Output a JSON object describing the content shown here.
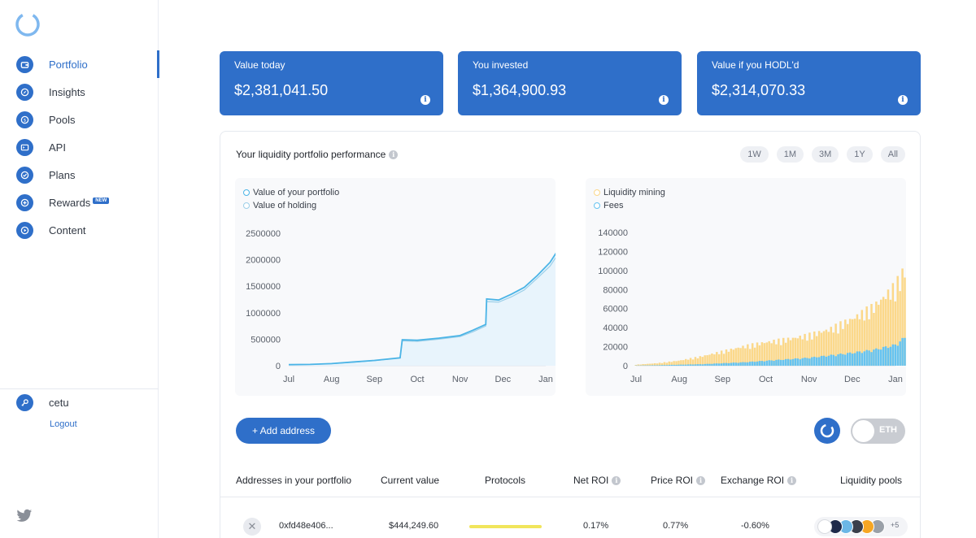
{
  "nav": {
    "items": [
      {
        "label": "Portfolio",
        "icon": "wallet-icon",
        "active": true
      },
      {
        "label": "Insights",
        "icon": "compass-icon"
      },
      {
        "label": "Pools",
        "icon": "coin-icon"
      },
      {
        "label": "API",
        "icon": "terminal-icon"
      },
      {
        "label": "Plans",
        "icon": "check-circle-icon"
      },
      {
        "label": "Rewards",
        "icon": "plus-circle-icon",
        "badge": "NEW"
      },
      {
        "label": "Content",
        "icon": "play-icon"
      }
    ]
  },
  "user": {
    "name": "cetu",
    "logout_label": "Logout",
    "icon": "key-icon"
  },
  "cards": [
    {
      "label": "Value today",
      "value": "$2,381,041.50"
    },
    {
      "label": "You invested",
      "value": "$1,364,900.93"
    },
    {
      "label": "Value if you HODL'd",
      "value": "$2,314,070.33"
    }
  ],
  "performance": {
    "title": "Your liquidity portfolio performance",
    "ranges": [
      "1W",
      "1M",
      "3M",
      "1Y",
      "All"
    ]
  },
  "chart_data": [
    {
      "type": "area",
      "legend": [
        "Value of your portfolio",
        "Value of holding"
      ],
      "x_ticks": [
        "Jul",
        "Aug",
        "Sep",
        "Oct",
        "Nov",
        "Dec",
        "Jan"
      ],
      "y_ticks": [
        "0",
        "500000",
        "1000000",
        "1500000",
        "2000000",
        "2500000"
      ],
      "ylim": [
        0,
        2500000
      ],
      "series": [
        {
          "name": "Value of your portfolio",
          "color": "#4bb4e6",
          "x": [
            0,
            0.5,
            1.0,
            1.5,
            2.0,
            2.6,
            2.65,
            3.0,
            3.5,
            4.0,
            4.3,
            4.6,
            4.62,
            4.9,
            5.2,
            5.5,
            5.8,
            6.1,
            6.3,
            6.4,
            6.55
          ],
          "values": [
            20000,
            25000,
            40000,
            70000,
            100000,
            150000,
            490000,
            480000,
            520000,
            570000,
            670000,
            780000,
            1260000,
            1240000,
            1350000,
            1480000,
            1700000,
            1950000,
            2200000,
            1900000,
            2200000
          ]
        },
        {
          "name": "Value of holding",
          "color": "#9ccfe8",
          "x": [
            0,
            0.5,
            1.0,
            1.5,
            2.0,
            2.6,
            2.65,
            3.0,
            3.5,
            4.0,
            4.3,
            4.6,
            4.62,
            4.9,
            5.2,
            5.5,
            5.8,
            6.1,
            6.3,
            6.4,
            6.55
          ],
          "values": [
            20000,
            24000,
            38000,
            66000,
            95000,
            140000,
            470000,
            460000,
            500000,
            550000,
            640000,
            750000,
            1210000,
            1200000,
            1300000,
            1430000,
            1650000,
            1880000,
            2120000,
            1850000,
            2140000
          ]
        }
      ]
    },
    {
      "type": "bar",
      "legend": [
        "Liquidity mining",
        "Fees"
      ],
      "x_ticks": [
        "Jul",
        "Aug",
        "Sep",
        "Oct",
        "Nov",
        "Dec",
        "Jan"
      ],
      "y_ticks": [
        "0",
        "20000",
        "40000",
        "60000",
        "80000",
        "100000",
        "120000",
        "140000"
      ],
      "ylim": [
        0,
        140000
      ],
      "series": [
        {
          "name": "Liquidity mining",
          "color": "#fbd88a",
          "x": [
            0,
            0.5,
            1.0,
            1.5,
            2.0,
            2.5,
            3.0,
            3.5,
            4.0,
            4.5,
            5.0,
            5.5,
            6.0,
            6.3,
            6.55
          ],
          "values": [
            1000,
            2500,
            5000,
            9000,
            14000,
            19000,
            23000,
            26000,
            30000,
            36000,
            46000,
            58000,
            78000,
            100000,
            128000
          ]
        },
        {
          "name": "Fees",
          "color": "#66c3f0",
          "x": [
            0,
            0.5,
            1.0,
            1.5,
            2.0,
            2.5,
            3.0,
            3.5,
            4.0,
            4.5,
            5.0,
            5.5,
            6.0,
            6.3,
            6.55
          ],
          "values": [
            200,
            500,
            1000,
            1500,
            2500,
            3500,
            5000,
            6500,
            8000,
            10500,
            13000,
            16000,
            21000,
            31000,
            42000
          ]
        }
      ]
    }
  ],
  "actions": {
    "add_address_label": "+ Add address",
    "toggle_label": "ETH"
  },
  "table": {
    "headers": [
      "Addresses in your portfolio",
      "Current value",
      "Protocols",
      "Net ROI",
      "Price ROI",
      "Exchange ROI",
      "Liquidity pools"
    ],
    "rows": [
      {
        "address": "0xfd48e406...",
        "value": "$444,249.60",
        "net_roi": "0.17%",
        "price_roi": "0.77%",
        "exchange_roi": "-0.60%",
        "pools_more": "+5",
        "pool_colors": [
          "#ffffff",
          "#1e2a4a",
          "#6bb7e6",
          "#3a3f4b",
          "#f6a623",
          "#9aa0a8"
        ]
      }
    ]
  }
}
